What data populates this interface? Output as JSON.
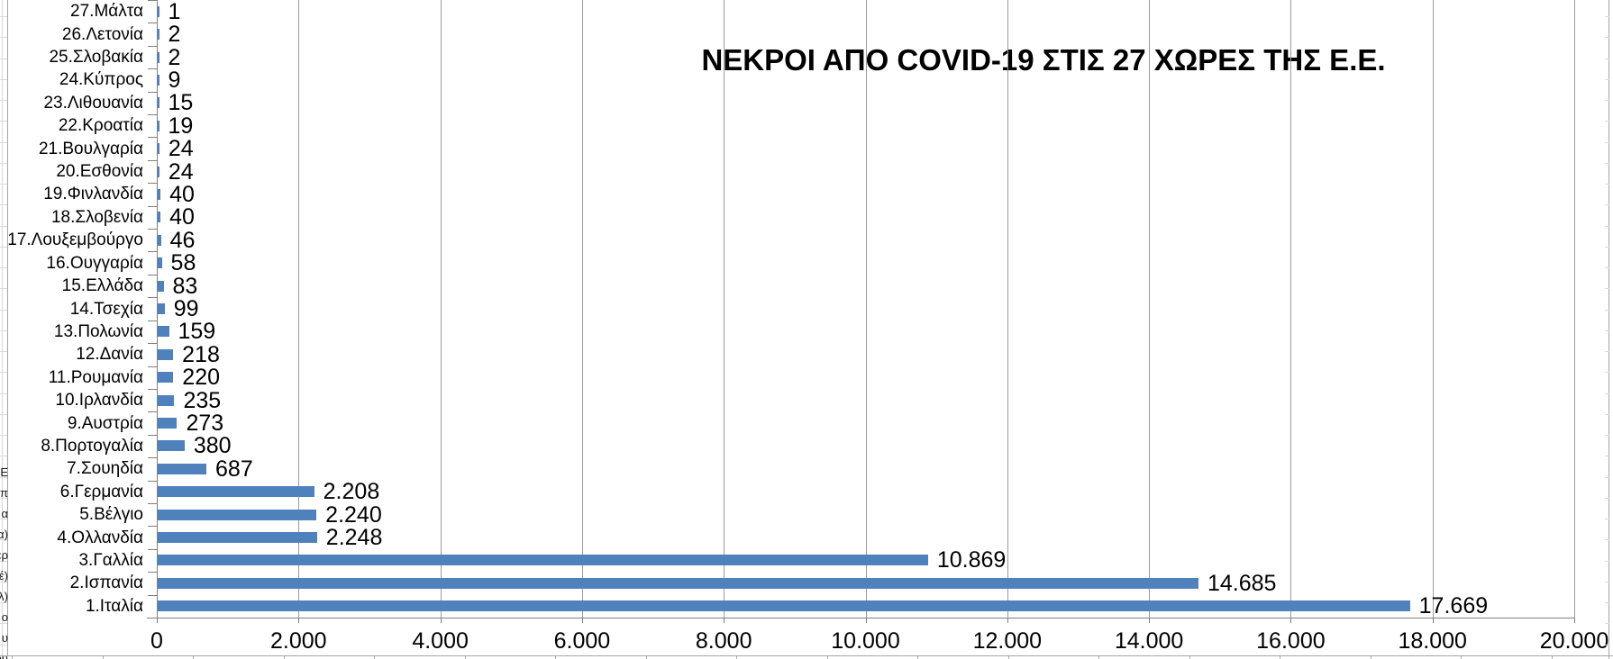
{
  "chart_data": {
    "type": "bar",
    "orientation": "horizontal",
    "title": "ΝΕΚΡΟΙ ΑΠΟ COVID-19 ΣΤΙΣ 27 ΧΩΡΕΣ ΤΗΣ Ε.Ε.",
    "categories": [
      "27.Μάλτα",
      "26.Λετονία",
      "25.Σλοβακία",
      "24.Κύπρος",
      "23.Λιθουανία",
      "22.Κροατία",
      "21.Βουλγαρία",
      "20.Εσθονία",
      "19.Φινλανδία",
      "18.Σλοβενία",
      "17.Λουξεμβούργο",
      "16.Ουγγαρία",
      "15.Ελλάδα",
      "14.Τσεχία",
      "13.Πολωνία",
      "12.Δανία",
      "11.Ρουμανία",
      "10.Ιρλανδία",
      "9.Αυστρία",
      "8.Πορτογαλία",
      "7.Σουηδία",
      "6.Γερμανία",
      "5.Βέλγιο",
      "4.Ολλανδία",
      "3.Γαλλία",
      "2.Ισπανία",
      "1.Ιταλία"
    ],
    "values": [
      1,
      2,
      2,
      9,
      15,
      19,
      24,
      24,
      40,
      40,
      46,
      58,
      83,
      99,
      159,
      218,
      220,
      235,
      273,
      380,
      687,
      2208,
      2240,
      2248,
      10869,
      14685,
      17669
    ],
    "value_labels": [
      "1",
      "2",
      "2",
      "9",
      "15",
      "19",
      "24",
      "24",
      "40",
      "40",
      "46",
      "58",
      "83",
      "99",
      "159",
      "218",
      "220",
      "235",
      "273",
      "380",
      "687",
      "2.208",
      "2.240",
      "2.248",
      "10.869",
      "14.685",
      "17.669"
    ],
    "xlabel": "",
    "ylabel": "",
    "xlim": [
      0,
      20000
    ],
    "x_ticks": [
      0,
      2000,
      4000,
      6000,
      8000,
      10000,
      12000,
      14000,
      16000,
      18000,
      20000
    ],
    "x_tick_labels": [
      "0",
      "2.000",
      "4.000",
      "6.000",
      "8.000",
      "10.000",
      "12.000",
      "14.000",
      "16.000",
      "18.000",
      "20.000"
    ],
    "grid": true,
    "legend": false,
    "bar_color": "#4F81BD"
  },
  "sheet": {
    "left_text_fragments": [
      "ΡΕ",
      "π",
      "α",
      "α)",
      "ερ",
      "έ)",
      "λ)",
      "ο",
      "υ",
      "ου"
    ],
    "colors": {
      "bar": "#4F81BD",
      "plot_gridline": "#9b9b9b",
      "axis_line": "#7f7f7f",
      "sheet_gridline": "#d9d9d9",
      "sheet_edge": "#a6a6a6",
      "text": "#000000",
      "background": "#ffffff"
    }
  }
}
